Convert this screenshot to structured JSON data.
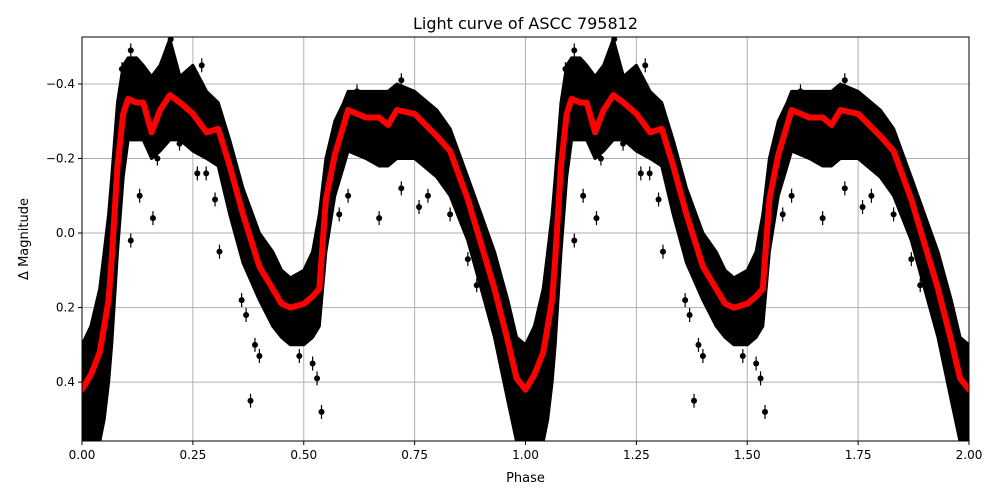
{
  "chart_data": {
    "type": "scatter",
    "title": "Light curve of ASCC 795812",
    "xlabel": "Phase",
    "ylabel": "Δ Magnitude",
    "xlim": [
      0.0,
      2.0
    ],
    "ylim": [
      0.558,
      -0.526
    ],
    "y_inverted": true,
    "grid": true,
    "xticks": [
      "0.00",
      "0.25",
      "0.50",
      "0.75",
      "1.00",
      "1.25",
      "1.50",
      "1.75",
      "2.00"
    ],
    "xtick_values": [
      0,
      0.25,
      0.5,
      0.75,
      1.0,
      1.25,
      1.5,
      1.75,
      2.0
    ],
    "yticks": [
      "−0.4",
      "−0.2",
      "0.0",
      "0.2",
      "0.4"
    ],
    "ytick_values": [
      -0.4,
      -0.2,
      0.0,
      0.2,
      0.4
    ],
    "colors": {
      "observations": "#000000",
      "model": "#ff0000",
      "grid": "#b0b0b0"
    },
    "repeat_cycles": 2,
    "model_curve": {
      "phase": [
        0.0,
        0.02,
        0.04,
        0.05,
        0.06,
        0.067,
        0.08,
        0.093,
        0.104,
        0.123,
        0.138,
        0.157,
        0.176,
        0.198,
        0.221,
        0.25,
        0.281,
        0.307,
        0.333,
        0.363,
        0.4,
        0.43,
        0.45,
        0.47,
        0.5,
        0.52,
        0.535,
        0.55,
        0.57,
        0.59,
        0.6,
        0.64,
        0.67,
        0.69,
        0.71,
        0.75,
        0.8,
        0.83,
        0.87,
        0.9,
        0.93,
        0.96,
        0.98,
        1.0
      ],
      "mag": [
        0.42,
        0.38,
        0.32,
        0.25,
        0.18,
        0.07,
        -0.18,
        -0.32,
        -0.36,
        -0.35,
        -0.35,
        -0.27,
        -0.33,
        -0.37,
        -0.35,
        -0.32,
        -0.27,
        -0.28,
        -0.18,
        -0.05,
        0.09,
        0.15,
        0.19,
        0.2,
        0.19,
        0.17,
        0.15,
        -0.09,
        -0.21,
        -0.29,
        -0.33,
        -0.31,
        -0.31,
        -0.29,
        -0.33,
        -0.32,
        -0.26,
        -0.22,
        -0.09,
        0.03,
        0.15,
        0.29,
        0.39,
        0.42
      ]
    },
    "observation_band": {
      "mag_min": [
        0.3,
        0.25,
        0.15,
        0.05,
        -0.05,
        -0.15,
        -0.35,
        -0.45,
        -0.47,
        -0.47,
        -0.45,
        -0.42,
        -0.45,
        -0.52,
        -0.42,
        -0.45,
        -0.38,
        -0.35,
        -0.25,
        -0.12,
        0.0,
        0.05,
        0.1,
        0.12,
        0.1,
        0.05,
        -0.05,
        -0.2,
        -0.3,
        -0.35,
        -0.38,
        -0.38,
        -0.38,
        -0.38,
        -0.4,
        -0.38,
        -0.33,
        -0.28,
        -0.15,
        -0.05,
        0.05,
        0.18,
        0.28,
        0.3
      ],
      "mag_max": [
        0.56,
        0.56,
        0.56,
        0.5,
        0.4,
        0.3,
        0.05,
        -0.15,
        -0.25,
        -0.25,
        -0.25,
        -0.2,
        -0.22,
        -0.25,
        -0.25,
        -0.22,
        -0.2,
        -0.18,
        -0.05,
        0.08,
        0.18,
        0.25,
        0.28,
        0.3,
        0.3,
        0.28,
        0.25,
        0.05,
        -0.1,
        -0.18,
        -0.22,
        -0.2,
        -0.18,
        -0.18,
        -0.2,
        -0.2,
        -0.15,
        -0.1,
        0.02,
        0.15,
        0.28,
        0.45,
        0.56,
        0.56
      ]
    },
    "observations": [
      [
        0.11,
        0.02
      ],
      [
        0.13,
        -0.1
      ],
      [
        0.16,
        -0.04
      ],
      [
        0.17,
        -0.2
      ],
      [
        0.22,
        -0.24
      ],
      [
        0.26,
        -0.16
      ],
      [
        0.28,
        -0.16
      ],
      [
        0.3,
        -0.09
      ],
      [
        0.31,
        0.05
      ],
      [
        0.36,
        0.18
      ],
      [
        0.37,
        0.22
      ],
      [
        0.38,
        0.45
      ],
      [
        0.39,
        0.3
      ],
      [
        0.4,
        0.33
      ],
      [
        0.49,
        0.33
      ],
      [
        0.52,
        0.35
      ],
      [
        0.53,
        0.39
      ],
      [
        0.54,
        0.48
      ],
      [
        0.55,
        0.02
      ],
      [
        0.58,
        -0.05
      ],
      [
        0.6,
        -0.1
      ],
      [
        0.67,
        -0.04
      ],
      [
        0.72,
        -0.12
      ],
      [
        0.76,
        -0.07
      ],
      [
        0.78,
        -0.1
      ],
      [
        0.83,
        -0.05
      ],
      [
        0.87,
        0.07
      ],
      [
        0.89,
        0.14
      ],
      [
        0.93,
        0.12
      ],
      [
        0.95,
        0.17
      ],
      [
        0.97,
        0.3
      ],
      [
        0.11,
        -0.49
      ],
      [
        0.2,
        -0.52
      ],
      [
        0.19,
        -0.48
      ],
      [
        0.27,
        -0.45
      ],
      [
        0.72,
        -0.41
      ],
      [
        0.62,
        -0.38
      ],
      [
        0.09,
        -0.44
      ]
    ]
  }
}
